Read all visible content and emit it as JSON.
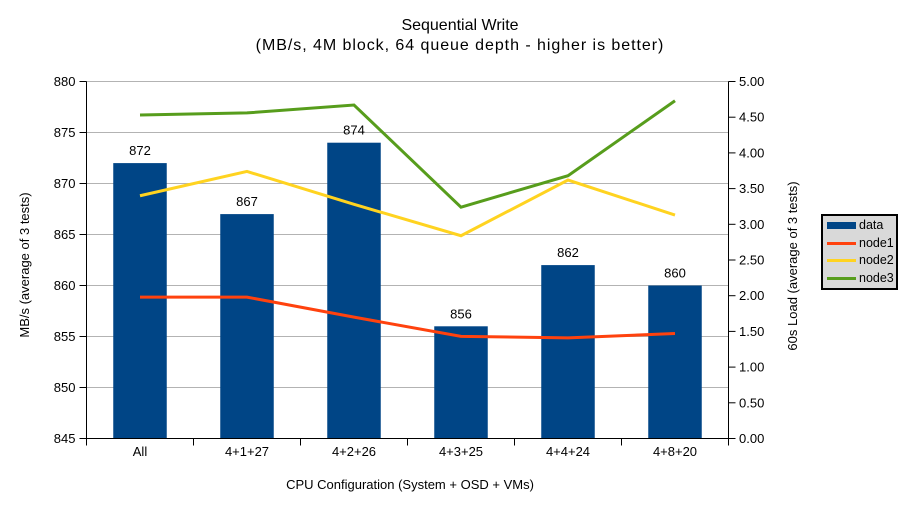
{
  "chart_data": {
    "type": "combo_bar_line",
    "title": "Sequential Write",
    "subtitle": "(MB/s, 4M block, 64 queue depth - higher is better)",
    "categories": [
      "All",
      "4+1+27",
      "4+2+26",
      "4+3+25",
      "4+4+24",
      "4+8+20"
    ],
    "bar_series": {
      "name": "data",
      "color": "#004586",
      "axis": "left",
      "values": [
        872,
        867,
        874,
        856,
        862,
        860
      ],
      "value_labels": [
        "872",
        "867",
        "874",
        "856",
        "862",
        "860"
      ]
    },
    "line_series": [
      {
        "name": "node1",
        "color": "#ff420e",
        "axis": "right",
        "values": [
          1.98,
          1.98,
          1.7,
          1.43,
          1.41,
          1.47
        ]
      },
      {
        "name": "node2",
        "color": "#ffd320",
        "axis": "right",
        "values": [
          3.4,
          3.74,
          3.28,
          2.84,
          3.62,
          3.13
        ]
      },
      {
        "name": "node3",
        "color": "#579d1c",
        "axis": "right",
        "values": [
          4.53,
          4.56,
          4.67,
          3.24,
          3.68,
          4.73
        ]
      }
    ],
    "left_axis": {
      "title": "MB/s (average of 3 tests)",
      "min": 845,
      "max": 880,
      "step": 5,
      "tick_labels": [
        "845",
        "850",
        "855",
        "860",
        "865",
        "870",
        "875",
        "880"
      ]
    },
    "right_axis": {
      "title": "60s Load (average of 3 tests)",
      "min": 0,
      "max": 5,
      "step": 0.5,
      "tick_labels": [
        "0.00",
        "0.50",
        "1.00",
        "1.50",
        "2.00",
        "2.50",
        "3.00",
        "3.50",
        "4.00",
        "4.50",
        "5.00"
      ]
    },
    "x_axis": {
      "title": "CPU Configuration (System + OSD + VMs)"
    },
    "legend": {
      "entries": [
        {
          "label": "data",
          "color": "#004586",
          "type": "bar"
        },
        {
          "label": "node1",
          "color": "#ff420e",
          "type": "line"
        },
        {
          "label": "node2",
          "color": "#ffd320",
          "type": "line"
        },
        {
          "label": "node3",
          "color": "#579d1c",
          "type": "line"
        }
      ]
    },
    "grid": "horizontal",
    "legend_position": "right",
    "colors": {
      "gridline": "#b3b3b3",
      "axis": "#000000",
      "legend_background": "#d9d9d9",
      "background": "#ffffff",
      "text": "#000000"
    }
  }
}
